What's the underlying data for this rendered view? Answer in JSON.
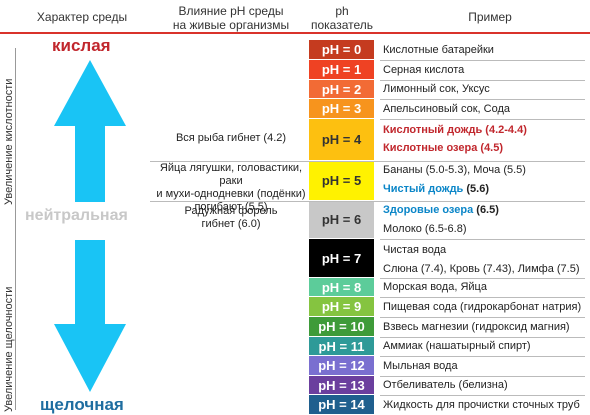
{
  "headers": {
    "character": "Характер среды",
    "influence_line1": "Влияние pH среды",
    "influence_line2": "на живые организмы",
    "ph_line1": "ph",
    "ph_line2": "показатель",
    "example": "Пример"
  },
  "side_labels": {
    "acidity": "Увеличение кислотности",
    "alkalinity": "Увеличение щелочности"
  },
  "environment": {
    "acid": "кислая",
    "neutral": "нейтральная",
    "alkaline": "щелочная"
  },
  "effects": {
    "fish": "Вся рыба гибнет (4.2)",
    "frogs_line1": "Яйца лягушки, головастики, раки",
    "frogs_line2": "и мухи-однодневки (подёнки)",
    "frogs_line3": "погибают (5.5)",
    "trout_line1": "Радужная форель",
    "trout_line2": "гибнет (6.0)"
  },
  "scale": [
    {
      "label": "pH = 0",
      "color": "#c53b1f",
      "text_color": "#ffffff"
    },
    {
      "label": "pH = 1",
      "color": "#ef4223",
      "text_color": "#ffffff"
    },
    {
      "label": "pH = 2",
      "color": "#f26b35",
      "text_color": "#ffffff"
    },
    {
      "label": "pH = 3",
      "color": "#f7941d",
      "text_color": "#ffffff"
    },
    {
      "label": "pH = 4",
      "color": "#fdc010",
      "text_color": "#333333"
    },
    {
      "label": "pH = 5",
      "color": "#fff200",
      "text_color": "#333333"
    },
    {
      "label": "pH = 6",
      "color": "#c8c8c8",
      "text_color": "#333333"
    },
    {
      "label": "pH = 7",
      "color": "#000000",
      "text_color": "#ffffff"
    },
    {
      "label": "pH = 8",
      "color": "#5ccc9a",
      "text_color": "#ffffff"
    },
    {
      "label": "pH = 9",
      "color": "#85c440",
      "text_color": "#ffffff"
    },
    {
      "label": "pH = 10",
      "color": "#3e9b39",
      "text_color": "#ffffff"
    },
    {
      "label": "pH = 11",
      "color": "#2e9a98",
      "text_color": "#ffffff"
    },
    {
      "label": "pH = 12",
      "color": "#7a6fd0",
      "text_color": "#ffffff"
    },
    {
      "label": "pH = 13",
      "color": "#6b3f9e",
      "text_color": "#ffffff"
    },
    {
      "label": "pH = 14",
      "color": "#1f5f8e",
      "text_color": "#ffffff"
    }
  ],
  "examples": {
    "e0": "Кислотные батарейки",
    "e1": "Серная кислота",
    "e2": "Лимонный сок, Уксус",
    "e3": "Апельсиновый сок, Сода",
    "acid_rain": "Кислотный дождь",
    "acid_rain_val": "(4.2-4.4)",
    "acid_lakes": "Кислотные озера",
    "acid_lakes_val": "(4.5)",
    "bananas": "Бананы (5.0-5.3), Моча (5.5)",
    "clean_rain": "Чистый дождь",
    "clean_rain_val": "(5.6)",
    "healthy_lakes": "Здоровые озера",
    "healthy_lakes_val": "(6.5)",
    "milk": "Молоко (6.5-6.8)",
    "water": "Чистая вода",
    "saliva": "Слюна (7.4), Кровь (7.43), Лимфа (7.5)",
    "e8": "Морская вода, Яйца",
    "e9": "Пищевая сода (гидрокарбонат натрия)",
    "e10": "Взвесь магнезии (гидроксид магния)",
    "e11": "Аммиак (нашатырный спирт)",
    "e12": "Мыльная вода",
    "e13": "Отбеливатель (белизна)",
    "e14": "Жидкость для прочистки сточных труб"
  },
  "colors": {
    "accent_red": "#d9332b",
    "arrow_blue": "#19c4f5",
    "acid_text": "#c1272d",
    "alkaline_text": "#1e6da0",
    "neutral_text": "#c8c8c8"
  }
}
